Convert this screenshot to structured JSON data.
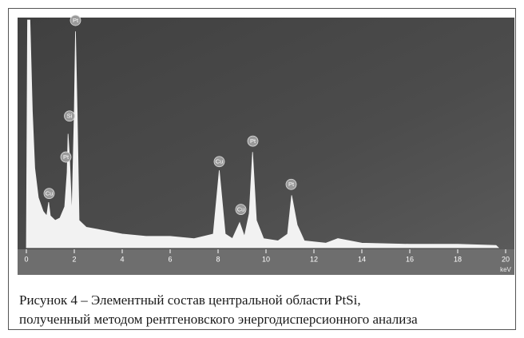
{
  "chart_data": {
    "type": "area",
    "x_label": "keV",
    "xlim": [
      0,
      20
    ],
    "ylim": [
      0,
      100
    ],
    "xticks": [
      0,
      2,
      4,
      6,
      8,
      10,
      12,
      14,
      16,
      18,
      20
    ],
    "color": "#f2f2f2",
    "x": [
      0,
      0.05,
      0.15,
      0.25,
      0.35,
      0.5,
      0.7,
      0.85,
      0.93,
      1.0,
      1.2,
      1.4,
      1.6,
      1.7,
      1.74,
      1.8,
      1.9,
      2.0,
      2.05,
      2.12,
      2.2,
      2.5,
      3,
      4,
      5,
      6,
      7,
      7.8,
      8.05,
      8.3,
      8.6,
      8.9,
      9.1,
      9.3,
      9.44,
      9.6,
      9.9,
      10.5,
      10.9,
      11.07,
      11.3,
      11.6,
      12.5,
      13,
      14,
      16,
      18,
      19.6,
      19.7
    ],
    "values": [
      0,
      100,
      100,
      60,
      35,
      22,
      16,
      14,
      20,
      14,
      12,
      13,
      18,
      33,
      50,
      40,
      14,
      60,
      95,
      60,
      12,
      9,
      8,
      6,
      5,
      5,
      4,
      6,
      34,
      6,
      4,
      11,
      5,
      15,
      42,
      12,
      4,
      3,
      6,
      23,
      10,
      3,
      2,
      4,
      2,
      1.5,
      1.5,
      1,
      0
    ],
    "annotations": [
      {
        "text": "Cu",
        "x": 0.95,
        "y": 21
      },
      {
        "text": "Pt",
        "x": 1.65,
        "y": 37
      },
      {
        "text": "Si",
        "x": 1.8,
        "y": 55
      },
      {
        "text": "Pt",
        "x": 2.05,
        "y": 97
      },
      {
        "text": "Cu",
        "x": 8.05,
        "y": 35
      },
      {
        "text": "Cu",
        "x": 8.95,
        "y": 14
      },
      {
        "text": "Pt",
        "x": 9.45,
        "y": 44
      },
      {
        "text": "Pt",
        "x": 11.05,
        "y": 25
      }
    ]
  },
  "caption": [
    "Рисунок 4 – Элементный состав центральной области PtSi,",
    "полученный методом рентгеновского энергодисперсионного анализа"
  ]
}
